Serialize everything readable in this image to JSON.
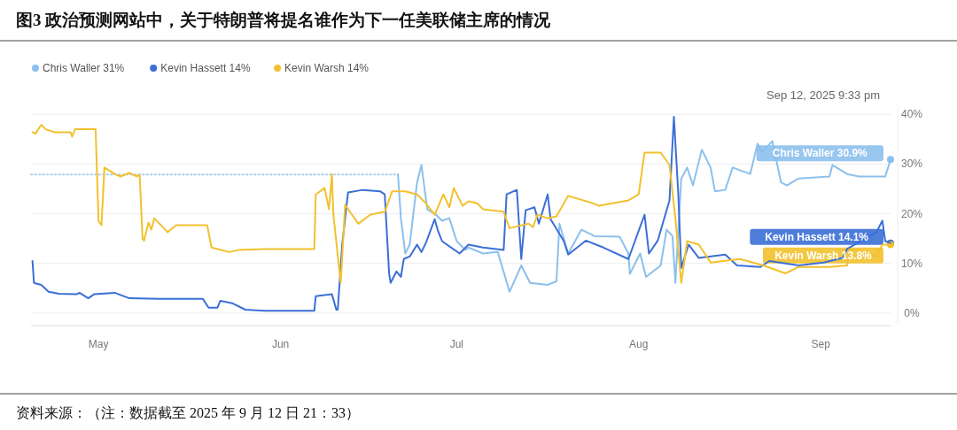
{
  "chart_data": {
    "type": "line",
    "title": "图3  政治预测网站中，关于特朗普将提名谁作为下一任美联储主席的情况",
    "xlim": [
      "2025-04-19T12:00",
      "2025-09-12T21:33"
    ],
    "ylim": [
      -2.5,
      42
    ],
    "xticks": [
      {
        "value": "2025-05-01",
        "label": "May"
      },
      {
        "value": "2025-06-01",
        "label": "Jun"
      },
      {
        "value": "2025-07-01",
        "label": "Jul"
      },
      {
        "value": "2025-08-01",
        "label": "Aug"
      },
      {
        "value": "2025-09-01",
        "label": "Sep"
      }
    ],
    "yticks": [
      {
        "value": 0,
        "label": "0%"
      },
      {
        "value": 10,
        "label": "10%"
      },
      {
        "value": 20,
        "label": "20%"
      },
      {
        "value": 30,
        "label": "30%"
      },
      {
        "value": 40,
        "label": "40%"
      }
    ],
    "grid": "y",
    "legend": "top left",
    "series": [
      {
        "color": "#a9cff0",
        "line_style": "dotted",
        "x": [
          "2025-04-19T12:00",
          "2025-06-21T00:00"
        ],
        "values": [
          27.9,
          27.9
        ]
      },
      {
        "name": "Chris Waller 31%",
        "color": "#8cc0ec",
        "x": [
          "2025-06-21T00:00",
          "2025-06-21T12:00",
          "2025-06-22T06:00",
          "2025-06-23T00:00",
          "2025-06-24T06:00",
          "2025-06-25T00:00",
          "2025-06-26T00:00",
          "2025-06-27T12:00",
          "2025-06-28T12:00",
          "2025-06-29T18:00",
          "2025-07-01T00:00",
          "2025-07-02T12:00",
          "2025-07-03T00:00",
          "2025-07-05T12:00",
          "2025-07-08T00:00",
          "2025-07-10T00:00",
          "2025-07-12T00:00",
          "2025-07-13T12:00",
          "2025-07-16T12:00",
          "2025-07-18T00:00",
          "2025-07-18T12:00",
          "2025-07-20T00:00",
          "2025-07-22T06:00",
          "2025-07-24T12:00",
          "2025-07-28T18:00",
          "2025-07-30T06:00",
          "2025-07-30T12:00",
          "2025-08-01T06:00",
          "2025-08-02T06:00",
          "2025-08-04T18:00",
          "2025-08-05T18:00",
          "2025-08-06T18:00",
          "2025-08-07T06:00",
          "2025-08-08T06:00",
          "2025-08-09T06:00",
          "2025-08-10T06:00",
          "2025-08-11T18:00",
          "2025-08-13T06:00",
          "2025-08-14T00:00",
          "2025-08-15T18:00",
          "2025-08-17T00:00",
          "2025-08-20T00:00",
          "2025-08-21T06:00",
          "2025-08-22T00:00",
          "2025-08-23T18:00",
          "2025-08-25T06:00",
          "2025-08-26T06:00",
          "2025-08-28T06:00",
          "2025-09-02T12:00",
          "2025-09-03T00:00",
          "2025-09-05T12:00",
          "2025-09-07T12:00",
          "2025-09-12T00:00",
          "2025-09-12T21:33"
        ],
        "values": [
          27.9,
          19.1,
          12,
          13.8,
          26.3,
          29.8,
          20.9,
          19.8,
          18.6,
          19.1,
          14.5,
          12.7,
          13.2,
          12,
          12.3,
          4.3,
          9.6,
          6.1,
          5.7,
          6.4,
          18,
          12,
          16.8,
          15.5,
          15.4,
          12,
          7.9,
          12,
          7.3,
          9.6,
          16.8,
          15.5,
          6.1,
          27,
          29.3,
          25.7,
          32.9,
          29.3,
          24.5,
          24.8,
          29.3,
          28,
          34.1,
          32.3,
          34.6,
          26.3,
          25.7,
          27.1,
          27.5,
          29.8,
          28,
          27.5,
          27.5,
          30.9
        ]
      },
      {
        "name": "Kevin Hassett 14%",
        "color": "#3b6fd6",
        "x": [
          "2025-04-19T18:00",
          "2025-04-20T00:00",
          "2025-04-21T06:00",
          "2025-04-22T12:00",
          "2025-04-24T06:00",
          "2025-04-27T06:00",
          "2025-04-27T18:00",
          "2025-04-29T06:00",
          "2025-04-30T06:00",
          "2025-05-03T18:00",
          "2025-05-06T06:00",
          "2025-05-11T06:00",
          "2025-05-18T18:00",
          "2025-05-19T18:00",
          "2025-05-21T06:00",
          "2025-05-21T18:00",
          "2025-05-23T18:00",
          "2025-05-26T00:00",
          "2025-05-29T06:00",
          "2025-06-06T18:00",
          "2025-06-07T00:00",
          "2025-06-09T18:00",
          "2025-06-10T12:00",
          "2025-06-10T18:00",
          "2025-06-11T12:00",
          "2025-06-12T12:00",
          "2025-06-15T00:00",
          "2025-06-18T00:00",
          "2025-06-18T18:00",
          "2025-06-19T12:00",
          "2025-06-19T18:00",
          "2025-06-20T18:00",
          "2025-06-21T12:00",
          "2025-06-22T00:00",
          "2025-06-23T00:00",
          "2025-06-24T06:00",
          "2025-06-25T00:00",
          "2025-06-25T18:00",
          "2025-06-27T06:00",
          "2025-06-27T18:00",
          "2025-06-28T12:00",
          "2025-07-01T12:00",
          "2025-07-03T00:00",
          "2025-07-05T12:00",
          "2025-07-09T00:00",
          "2025-07-09T12:00",
          "2025-07-11T06:00",
          "2025-07-12T00:00",
          "2025-07-12T18:00",
          "2025-07-14T06:00",
          "2025-07-15T00:00",
          "2025-07-16T12:00",
          "2025-07-17T00:00",
          "2025-07-19T06:00",
          "2025-07-20T00:00",
          "2025-07-23T00:00",
          "2025-07-26T00:00",
          "2025-07-30T06:00",
          "2025-08-02T00:00",
          "2025-08-02T18:00",
          "2025-08-04T06:00",
          "2025-08-06T06:00",
          "2025-08-07T00:00",
          "2025-08-07T18:00",
          "2025-08-08T06:00",
          "2025-08-09T12:00",
          "2025-08-11T06:00",
          "2025-08-15T18:00",
          "2025-08-17T18:00",
          "2025-08-21T18:00",
          "2025-08-23T06:00",
          "2025-08-28T06:00",
          "2025-09-01T12:00",
          "2025-09-04T18:00",
          "2025-09-05T12:00",
          "2025-09-10T12:00",
          "2025-09-11T12:00",
          "2025-09-12T00:00",
          "2025-09-12T21:33"
        ],
        "values": [
          10.5,
          6.1,
          5.7,
          4.3,
          3.9,
          3.8,
          4.1,
          3,
          3.8,
          4.1,
          3,
          2.9,
          2.9,
          1.1,
          1.1,
          2.5,
          2,
          0.7,
          0.5,
          0.5,
          3.4,
          3.8,
          0.7,
          0.7,
          13.8,
          24.3,
          24.8,
          24.5,
          23.9,
          7.9,
          6.1,
          8.4,
          7.3,
          10.9,
          11.4,
          13.8,
          12.3,
          14.1,
          18.9,
          16.8,
          14.5,
          12,
          13.8,
          13.2,
          12.7,
          23.9,
          24.8,
          10.9,
          20.7,
          21.3,
          18,
          23.9,
          18.9,
          14.5,
          11.8,
          14.6,
          13.2,
          10.9,
          19.8,
          12,
          14.6,
          22.7,
          39.5,
          23.9,
          9.1,
          13.8,
          11.1,
          11.8,
          9.6,
          9.3,
          10.5,
          9.6,
          10.2,
          11.1,
          12.9,
          16.3,
          18.6,
          14.5,
          14.1
        ]
      },
      {
        "name": "Kevin Warsh 14%",
        "color": "#f2c12e",
        "x": [
          "2025-04-19T18:00",
          "2025-04-20T06:00",
          "2025-04-21T06:00",
          "2025-04-22T00:00",
          "2025-04-23T12:00",
          "2025-04-26T06:00",
          "2025-04-26T12:00",
          "2025-04-27T00:00",
          "2025-04-30T12:00",
          "2025-05-01T00:00",
          "2025-05-01T12:00",
          "2025-05-02T00:00",
          "2025-05-03T18:00",
          "2025-05-04T18:00",
          "2025-05-06T06:00",
          "2025-05-07T12:00",
          "2025-05-08T00:00",
          "2025-05-08T12:00",
          "2025-05-08T18:00",
          "2025-05-09T12:00",
          "2025-05-10T00:00",
          "2025-05-10T12:00",
          "2025-05-12T18:00",
          "2025-05-14T06:00",
          "2025-05-16T18:00",
          "2025-05-19T12:00",
          "2025-05-20T06:00",
          "2025-05-23T06:00",
          "2025-05-24T18:00",
          "2025-05-29T06:00",
          "2025-06-06T18:00",
          "2025-06-07T00:00",
          "2025-06-08T12:00",
          "2025-06-09T06:00",
          "2025-06-09T18:00",
          "2025-06-10T00:00",
          "2025-06-11T06:00",
          "2025-06-12T00:00",
          "2025-06-14T06:00",
          "2025-06-16T06:00",
          "2025-06-18T18:00",
          "2025-06-20T00:00",
          "2025-06-22T06:00",
          "2025-06-24T06:00",
          "2025-06-25T18:00",
          "2025-06-27T06:00",
          "2025-06-28T18:00",
          "2025-06-29T18:00",
          "2025-06-30T12:00",
          "2025-07-02T00:00",
          "2025-07-03T00:00",
          "2025-07-04T12:00",
          "2025-07-05T12:00",
          "2025-07-09T00:00",
          "2025-07-10T00:00",
          "2025-07-13T06:00",
          "2025-07-14T00:00",
          "2025-07-14T18:00",
          "2025-07-16T12:00",
          "2025-07-18T00:00",
          "2025-07-20T00:00",
          "2025-07-24T06:00",
          "2025-07-25T06:00",
          "2025-07-30T06:00",
          "2025-08-01T00:00",
          "2025-08-02T00:00",
          "2025-08-04T18:00",
          "2025-08-06T06:00",
          "2025-08-07T06:00",
          "2025-08-08T06:00",
          "2025-08-09T06:00",
          "2025-08-11T06:00",
          "2025-08-13T06:00",
          "2025-08-18T06:00",
          "2025-08-22T06:00",
          "2025-08-26T00:00",
          "2025-08-28T06:00",
          "2025-09-02T12:00",
          "2025-09-05T12:00",
          "2025-09-06T00:00",
          "2025-09-10T12:00",
          "2025-09-11T12:00",
          "2025-09-12T21:33"
        ],
        "values": [
          36.4,
          36.1,
          37.9,
          37,
          36.4,
          36.4,
          35.5,
          37,
          37,
          18.6,
          17.7,
          29.3,
          28,
          27.5,
          28.2,
          27.5,
          27.9,
          15,
          14.6,
          18.2,
          16.8,
          19.1,
          16.3,
          17.7,
          17.7,
          17.7,
          13.2,
          12.3,
          12.7,
          12.9,
          12.9,
          23.9,
          25.2,
          20.9,
          28,
          19.8,
          6.1,
          21.8,
          18,
          19.8,
          20.4,
          24.5,
          24.5,
          23.9,
          22.1,
          19.8,
          23.9,
          21.3,
          25.2,
          21.6,
          22.5,
          22.1,
          20.9,
          20.4,
          17.1,
          18,
          17.3,
          19.8,
          19.1,
          19.5,
          23.6,
          22.1,
          21.6,
          22.7,
          23.9,
          32.3,
          32.3,
          29.8,
          19.1,
          6.1,
          14.5,
          13.8,
          10.2,
          10.9,
          9.6,
          8,
          9.3,
          9.3,
          9.6,
          12.9,
          11.4,
          13.8,
          13.8
        ]
      }
    ],
    "annotations": [
      {
        "text": "Chris Waller 30.9%",
        "x": "2025-09-12T21:33",
        "y": 30.9
      },
      {
        "text": "Kevin Hassett 14.1%",
        "x": "2025-09-12T21:33",
        "y": 14.1
      },
      {
        "text": "Kevin Warsh 13.8%",
        "x": "2025-09-12T21:33",
        "y": 13.8
      },
      "Sep 12, 2025 9:33 pm",
      "资料来源：（注：数据截至 2025 年 9 月 12 日 21：33）"
    ]
  }
}
